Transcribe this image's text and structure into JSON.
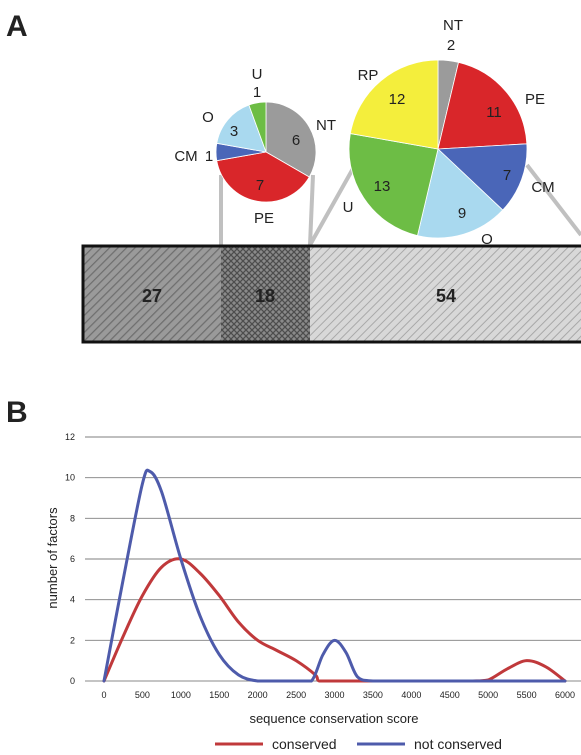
{
  "panels": {
    "a": "A",
    "b": "B"
  },
  "chart_data": [
    {
      "type": "bar",
      "orientation": "horizontal-stacked",
      "values": [
        27,
        18,
        54
      ],
      "labels": [
        "27",
        "18",
        "54"
      ]
    },
    {
      "type": "pie",
      "slices": [
        {
          "label": "NT",
          "value": 6,
          "color": "#9b9b9b"
        },
        {
          "label": "PE",
          "value": 7,
          "color": "#d9262a"
        },
        {
          "label": "CM",
          "value": 1,
          "color": "#4a66b8"
        },
        {
          "label": "O",
          "value": 3,
          "color": "#a9d9ef"
        },
        {
          "label": "U",
          "value": 1,
          "color": "#6dbd45"
        }
      ]
    },
    {
      "type": "pie",
      "slices": [
        {
          "label": "NT",
          "value": 2,
          "color": "#9b9b9b"
        },
        {
          "label": "PE",
          "value": 11,
          "color": "#d9262a"
        },
        {
          "label": "CM",
          "value": 7,
          "color": "#4a66b8"
        },
        {
          "label": "O",
          "value": 9,
          "color": "#a9d9ef"
        },
        {
          "label": "U",
          "value": 13,
          "color": "#6dbd45"
        },
        {
          "label": "RP",
          "value": 12,
          "color": "#f4ee3c"
        }
      ]
    },
    {
      "type": "line",
      "xlabel": "sequence conservation score",
      "ylabel": "number of factors",
      "xlim": [
        0,
        6000
      ],
      "ylim": [
        0,
        12
      ],
      "xticks": [
        0,
        500,
        1000,
        1500,
        2000,
        2500,
        3000,
        3500,
        4000,
        4500,
        5000,
        5500,
        6000
      ],
      "yticks": [
        0,
        2,
        4,
        6,
        8,
        10,
        12
      ],
      "grid": "horizontal",
      "legend_position": "bottom",
      "series": [
        {
          "name": "conserved",
          "color": "#c0393b",
          "x": [
            0,
            250,
            500,
            750,
            1000,
            1250,
            1500,
            1750,
            2000,
            2250,
            2500,
            2750,
            2800,
            3000,
            3500,
            4000,
            4500,
            4800,
            5000,
            5250,
            5500,
            5750,
            6000
          ],
          "y": [
            0,
            2.2,
            4.2,
            5.6,
            6.0,
            5.3,
            4.2,
            2.9,
            2.0,
            1.5,
            1.0,
            0.3,
            0,
            0,
            0,
            0,
            0,
            0,
            0.05,
            0.6,
            1.0,
            0.7,
            0
          ]
        },
        {
          "name": "not conserved",
          "color": "#4e5bab",
          "x": [
            0,
            250,
            500,
            600,
            750,
            1000,
            1250,
            1500,
            1750,
            2000,
            2250,
            2500,
            2700,
            2850,
            3000,
            3150,
            3300,
            3500,
            4000,
            4500,
            5000,
            5500,
            6000
          ],
          "y": [
            0,
            5.0,
            9.7,
            10.3,
            9.3,
            6.0,
            3.2,
            1.3,
            0.3,
            0,
            0,
            0,
            0,
            1.3,
            2.0,
            1.4,
            0.2,
            0,
            0,
            0,
            0,
            0,
            0
          ]
        }
      ]
    }
  ]
}
